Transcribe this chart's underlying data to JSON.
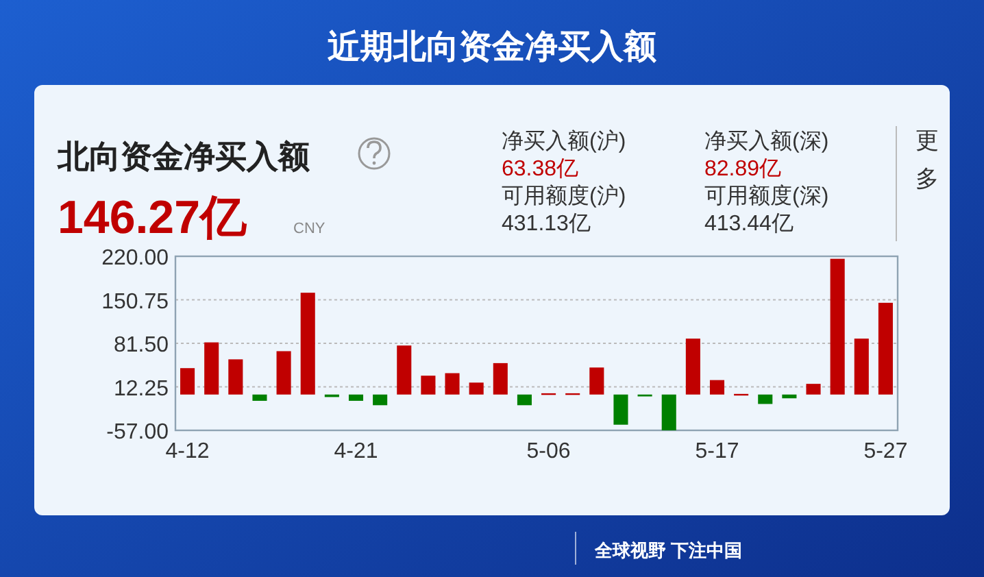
{
  "chart_data": {
    "type": "bar",
    "title": "近期北向资金净买入额",
    "subtitle": "北向资金净买入额",
    "categories": [
      "4-12",
      null,
      null,
      null,
      null,
      null,
      null,
      "4-21",
      null,
      null,
      null,
      null,
      null,
      null,
      null,
      "5-06",
      null,
      null,
      null,
      null,
      null,
      null,
      "5-17",
      null,
      null,
      null,
      null,
      null,
      null,
      "5-27"
    ],
    "values": [
      42,
      83,
      56,
      -10,
      69,
      162,
      -4,
      -10,
      -17,
      78,
      30,
      34,
      19,
      50,
      -17,
      2,
      2,
      43,
      -48,
      -3,
      -57,
      89,
      23,
      1,
      -15,
      -6,
      17,
      216,
      89,
      146
    ],
    "colors": [
      "#c00000",
      "#c00000",
      "#c00000",
      "#008000",
      "#c00000",
      "#c00000",
      "#008000",
      "#008000",
      "#008000",
      "#c00000",
      "#c00000",
      "#c00000",
      "#c00000",
      "#c00000",
      "#008000",
      "#c00000",
      "#c00000",
      "#c00000",
      "#008000",
      "#008000",
      "#008000",
      "#c00000",
      "#c00000",
      "#c00000",
      "#008000",
      "#008000",
      "#c00000",
      "#c00000",
      "#c00000",
      "#c00000"
    ],
    "ylim": [
      -57,
      220
    ],
    "yticks": [
      {
        "value": -57,
        "label": "-57.00"
      },
      {
        "value": 12.25,
        "label": "12.25"
      },
      {
        "value": 81.5,
        "label": "81.50"
      },
      {
        "value": 150.75,
        "label": "150.75"
      },
      {
        "value": 220,
        "label": "220.00"
      }
    ],
    "grid": "y",
    "annotations": [
      "146.27亿",
      "CNY",
      "净买入额(沪)",
      "63.38亿",
      "可用额度(沪)",
      "431.13亿",
      "净买入额(深)",
      "82.89亿",
      "可用额度(深)",
      "413.44亿",
      "更多",
      "全球视野 下注中国"
    ]
  }
}
